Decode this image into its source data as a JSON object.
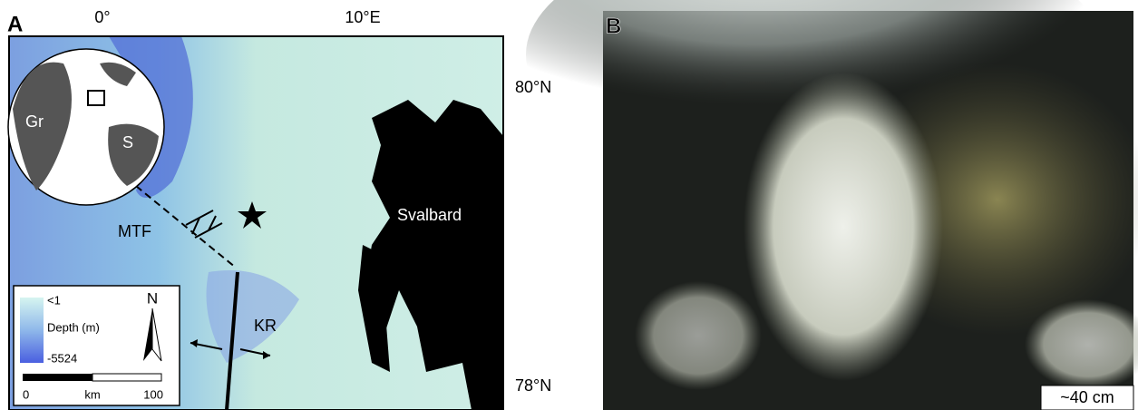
{
  "panel_a": {
    "label": "A",
    "longitude_labels": [
      "0°",
      "10°E"
    ],
    "latitude_labels": [
      "80°N",
      "78°N"
    ],
    "inset_labels": [
      "Gr",
      "S"
    ],
    "map_labels": {
      "mtf": "MTF",
      "svalbard": "Svalbard",
      "kr": "KR"
    },
    "north": "N",
    "legend": {
      "max": "<1",
      "title": "Depth (m)",
      "min": "-5524"
    },
    "scale_bar": {
      "start": "0",
      "unit": "km",
      "end": "100"
    }
  },
  "panel_b": {
    "label": "B",
    "scale": "~40 cm"
  }
}
